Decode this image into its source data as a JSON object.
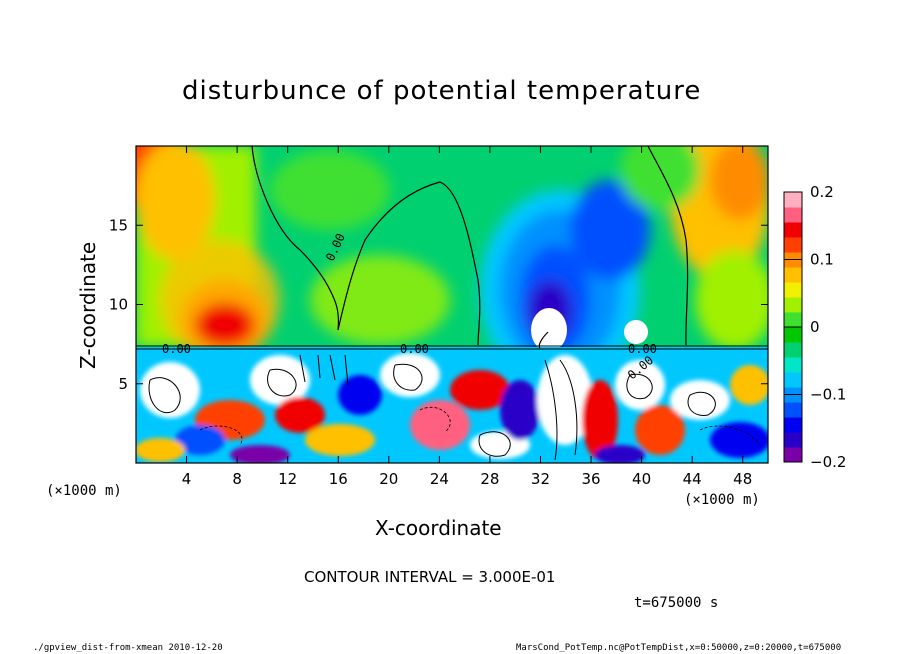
{
  "chart_data": {
    "type": "heatmap",
    "title": "disturbunce of potential temperature",
    "xlabel": "X-coordinate",
    "ylabel": "Z-coordinate",
    "x_unit_left": "(×1000 m)",
    "x_unit_right": "(×1000 m)",
    "xlim": [
      0,
      50
    ],
    "ylim": [
      0,
      20
    ],
    "x_ticks": [
      "4",
      "8",
      "12",
      "16",
      "20",
      "24",
      "28",
      "32",
      "36",
      "40",
      "44",
      "48"
    ],
    "x_tick_values": [
      4,
      8,
      12,
      16,
      20,
      24,
      28,
      32,
      36,
      40,
      44,
      48
    ],
    "y_ticks": [
      "5",
      "10",
      "15"
    ],
    "y_tick_values": [
      5,
      10,
      15
    ],
    "colorbar": {
      "range": [
        -0.2,
        0.2
      ],
      "tick_labels": [
        "0.2",
        "0.1",
        "0",
        "−0.1",
        "−0.2"
      ],
      "tick_values": [
        0.2,
        0.1,
        0,
        -0.1,
        -0.2
      ],
      "colors": [
        "#7a00a8",
        "#2a00c8",
        "#0000f0",
        "#0050ff",
        "#0090ff",
        "#00c8ff",
        "#00e6c8",
        "#00d070",
        "#00c800",
        "#40e030",
        "#a0f000",
        "#f0f000",
        "#ffc000",
        "#ff8c00",
        "#ff4000",
        "#f00000",
        "#ff6080",
        "#ffb0c0"
      ]
    },
    "contour_labels": [
      "0.00",
      "0.00",
      "0.00",
      "0.00",
      "0.00"
    ],
    "contour_interval_text": "CONTOUR INTERVAL = 3.000E-01",
    "time_text": "t=675000 s"
  },
  "footer": {
    "left": "./gpview_dist-from-xmean  2010-12-20",
    "right": "MarsCond_PotTemp.nc@PotTempDist,x=0:50000,z=0:20000,t=675000"
  }
}
